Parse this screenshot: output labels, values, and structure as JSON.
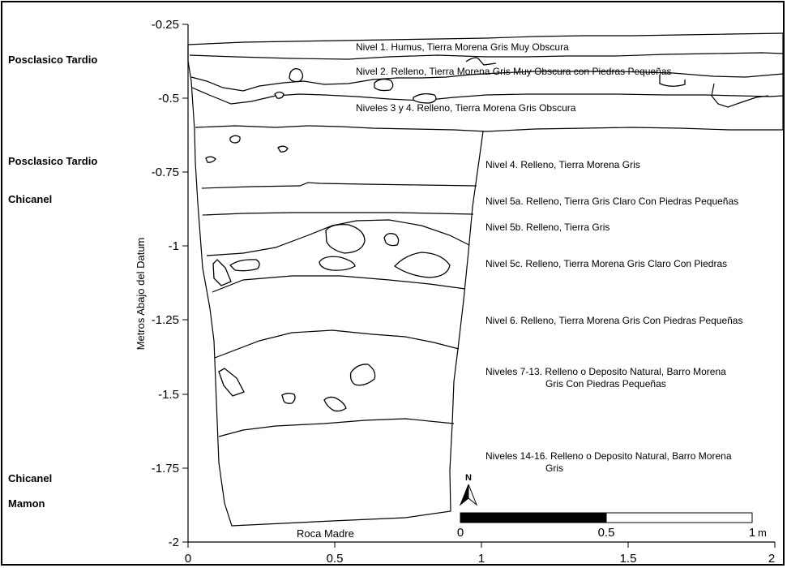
{
  "axis": {
    "y_title": "Metros Abajo del Datum",
    "y_ticks": [
      "-0.25",
      "-0.5",
      "-0.75",
      "-1",
      "-1.25",
      "-1.5",
      "-1.75",
      "-2"
    ],
    "x_ticks": [
      "0",
      "0.5",
      "1",
      "1.5",
      "2"
    ]
  },
  "periods": [
    "Posclasico Tardio",
    "Posclasico Tardio",
    "Chicanel",
    "Chicanel",
    "Mamon"
  ],
  "levels": [
    "Nivel 1. Humus, Tierra Morena Gris Muy Obscura",
    "Nivel 2. Relleno, Tierra Morena Gris Muy Obscura con Piedras Pequeñas",
    "Niveles 3 y 4. Relleno, Tierra Morena Gris Obscura",
    "Nivel 4. Relleno, Tierra Morena Gris",
    "Nivel 5a. Relleno, Tierra Gris Claro Con Piedras Pequeñas",
    "Nivel 5b. Relleno, Tierra Gris",
    "Nivel 5c. Relleno, Tierra Morena Gris Claro Con Piedras",
    "Nivel 6. Relleno, Tierra Morena Gris Con Piedras Pequeñas",
    "Niveles 7-13. Relleno o Deposito Natural, Barro Morena",
    "Gris Con Piedras Pequeñas",
    "Niveles 14-16. Relleno o Deposito Natural, Barro Morena",
    "Gris"
  ],
  "bottom_label": "Roca Madre",
  "north_label": "N",
  "scale_bar": {
    "labels": [
      "0",
      "0.5",
      "1"
    ],
    "unit": "m"
  }
}
